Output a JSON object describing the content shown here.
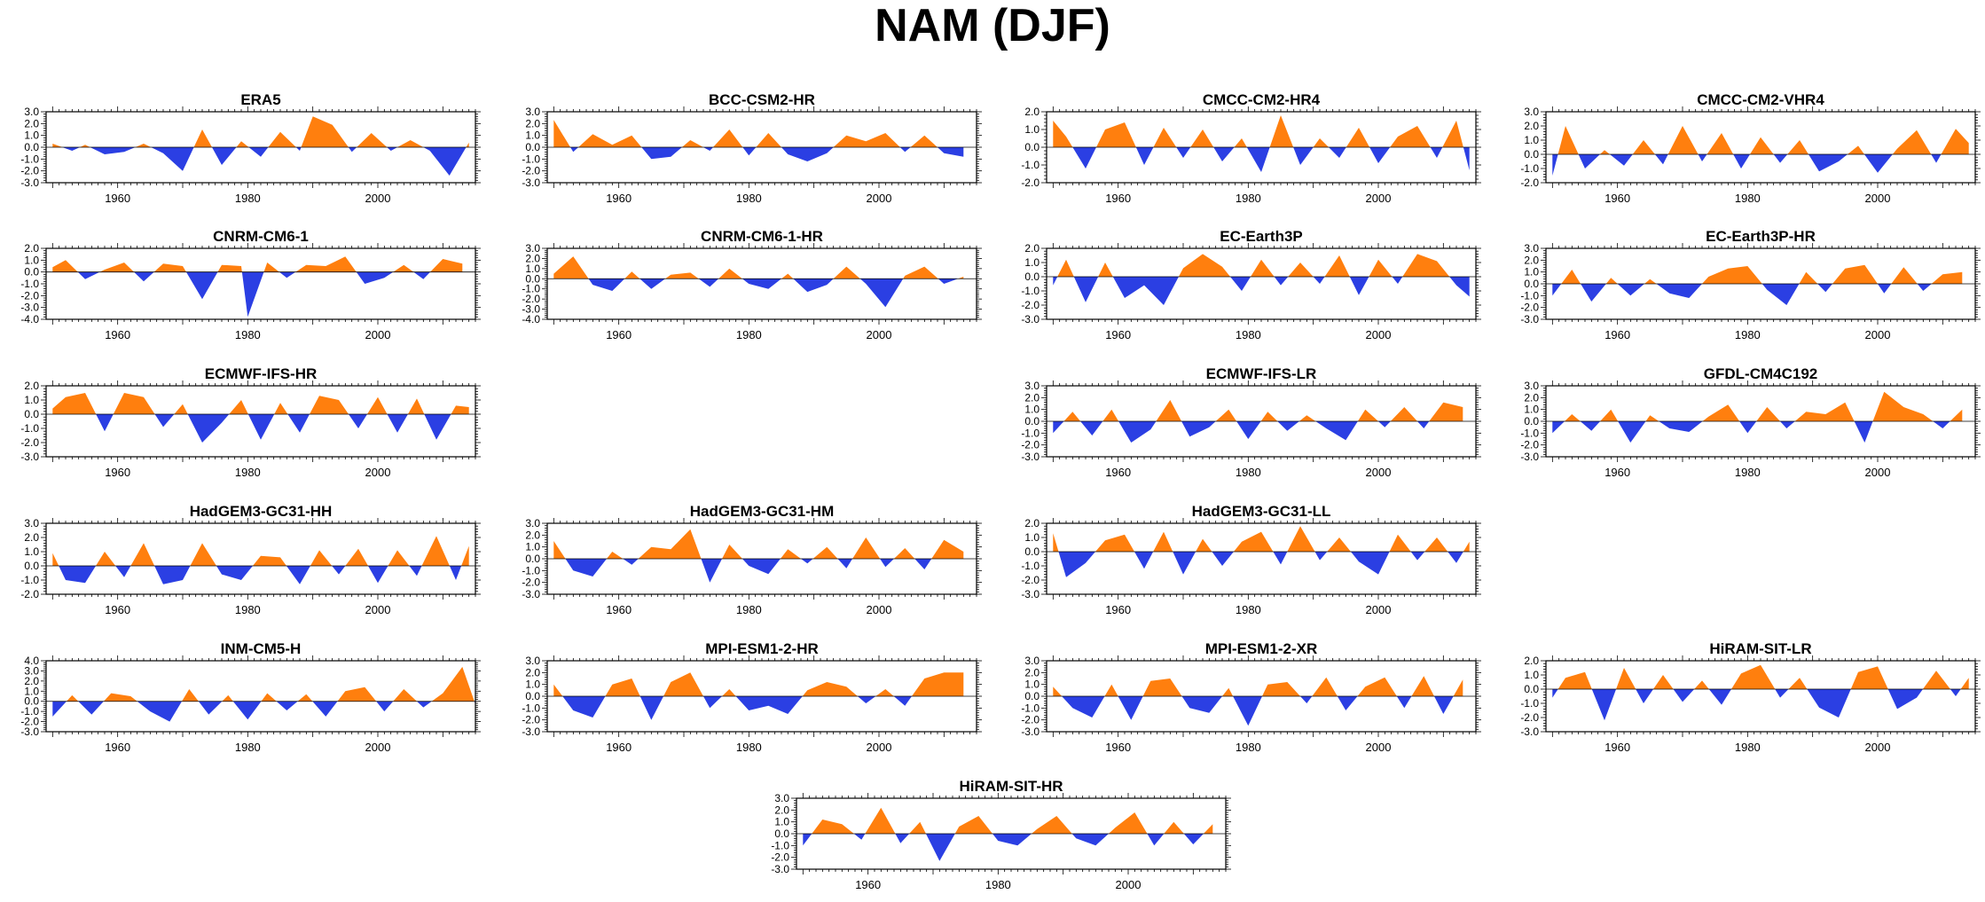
{
  "title": "NAM (DJF)",
  "colors": {
    "positive": "#FF7F0E",
    "negative": "#2B3FE3",
    "axis": "#000000"
  },
  "chart_data": {
    "type": "area",
    "x_ticks": [
      1960,
      1980,
      2000
    ],
    "xlim": [
      1949,
      2015
    ],
    "panels": [
      {
        "title": "ERA5",
        "ylim": [
          -3.0,
          3.0
        ],
        "yticks": [
          3.0,
          2.0,
          1.0,
          0.0,
          -1.0,
          -2.0,
          -3.0
        ],
        "x": [
          1950,
          1953,
          1955,
          1958,
          1961,
          1964,
          1967,
          1970,
          1973,
          1976,
          1979,
          1982,
          1985,
          1988,
          1990,
          1993,
          1996,
          1999,
          2002,
          2005,
          2008,
          2011,
          2014
        ],
        "values": [
          0.3,
          -0.3,
          0.2,
          -0.6,
          -0.4,
          0.3,
          -0.5,
          -2.0,
          1.5,
          -1.5,
          0.5,
          -0.8,
          1.3,
          -0.3,
          2.6,
          1.9,
          -0.4,
          1.2,
          -0.3,
          0.6,
          -0.3,
          -2.4,
          0.4
        ]
      },
      {
        "title": "BCC-CSM2-HR",
        "ylim": [
          -3.0,
          3.0
        ],
        "yticks": [
          3.0,
          2.0,
          1.0,
          0.0,
          -1.0,
          -2.0,
          -3.0
        ],
        "x": [
          1950,
          1953,
          1956,
          1959,
          1962,
          1965,
          1968,
          1971,
          1974,
          1977,
          1980,
          1983,
          1986,
          1989,
          1992,
          1995,
          1998,
          2001,
          2004,
          2007,
          2010,
          2013
        ],
        "values": [
          2.3,
          -0.4,
          1.1,
          0.2,
          1.0,
          -1.0,
          -0.8,
          0.6,
          -0.3,
          1.5,
          -0.7,
          1.2,
          -0.6,
          -1.2,
          -0.5,
          1.0,
          0.5,
          1.2,
          -0.4,
          1.0,
          -0.5,
          -0.8
        ]
      },
      {
        "title": "CMCC-CM2-HR4",
        "ylim": [
          -2.0,
          2.0
        ],
        "yticks": [
          2.0,
          1.0,
          0.0,
          -1.0,
          -2.0
        ],
        "x": [
          1950,
          1952,
          1955,
          1958,
          1961,
          1964,
          1967,
          1970,
          1973,
          1976,
          1979,
          1982,
          1985,
          1988,
          1991,
          1994,
          1997,
          2000,
          2003,
          2006,
          2009,
          2012,
          2014
        ],
        "values": [
          1.5,
          0.6,
          -1.2,
          1.0,
          1.4,
          -1.0,
          1.1,
          -0.6,
          1.0,
          -0.8,
          0.5,
          -1.4,
          1.8,
          -1.0,
          0.5,
          -0.6,
          1.1,
          -0.9,
          0.6,
          1.2,
          -0.6,
          1.5,
          -1.3
        ]
      },
      {
        "title": "CMCC-CM2-VHR4",
        "ylim": [
          -2.0,
          3.0
        ],
        "yticks": [
          3.0,
          2.0,
          1.0,
          0.0,
          -1.0,
          -2.0
        ],
        "x": [
          1950,
          1952,
          1955,
          1958,
          1961,
          1964,
          1967,
          1970,
          1973,
          1976,
          1979,
          1982,
          1985,
          1988,
          1991,
          1994,
          1997,
          2000,
          2003,
          2006,
          2009,
          2012,
          2014
        ],
        "values": [
          -1.5,
          2.0,
          -1.0,
          0.3,
          -0.8,
          1.0,
          -0.7,
          2.0,
          -0.5,
          1.5,
          -1.0,
          1.2,
          -0.6,
          1.0,
          -1.2,
          -0.5,
          0.6,
          -1.3,
          0.4,
          1.7,
          -0.6,
          1.8,
          0.8
        ]
      },
      {
        "title": "CNRM-CM6-1",
        "ylim": [
          -4.0,
          2.0
        ],
        "yticks": [
          2.0,
          1.0,
          0.0,
          -1.0,
          -2.0,
          -3.0,
          -4.0
        ],
        "x": [
          1950,
          1952,
          1955,
          1958,
          1961,
          1964,
          1967,
          1970,
          1973,
          1976,
          1979,
          1980,
          1983,
          1986,
          1989,
          1992,
          1995,
          1998,
          2001,
          2004,
          2007,
          2010,
          2013
        ],
        "values": [
          0.4,
          1.0,
          -0.6,
          0.2,
          0.8,
          -0.8,
          0.7,
          0.5,
          -2.3,
          0.6,
          0.5,
          -3.8,
          0.8,
          -0.5,
          0.6,
          0.5,
          1.3,
          -1.0,
          -0.5,
          0.6,
          -0.6,
          1.1,
          0.7
        ]
      },
      {
        "title": "CNRM-CM6-1-HR",
        "ylim": [
          -4.0,
          3.0
        ],
        "yticks": [
          3.0,
          2.0,
          1.0,
          0.0,
          -1.0,
          -2.0,
          -3.0,
          -4.0
        ],
        "x": [
          1950,
          1953,
          1956,
          1959,
          1962,
          1965,
          1968,
          1971,
          1974,
          1977,
          1980,
          1983,
          1986,
          1989,
          1992,
          1995,
          1998,
          2001,
          2004,
          2007,
          2010,
          2013
        ],
        "values": [
          0.5,
          2.2,
          -0.6,
          -1.2,
          0.7,
          -1.0,
          0.4,
          0.6,
          -0.8,
          1.0,
          -0.5,
          -1.0,
          0.5,
          -1.3,
          -0.6,
          1.2,
          -0.5,
          -2.8,
          0.3,
          1.2,
          -0.5,
          0.2
        ]
      },
      {
        "title": "EC-Earth3P",
        "ylim": [
          -3.0,
          2.0
        ],
        "yticks": [
          2.0,
          1.0,
          0.0,
          -1.0,
          -2.0,
          -3.0
        ],
        "x": [
          1950,
          1952,
          1955,
          1958,
          1961,
          1964,
          1967,
          1970,
          1973,
          1976,
          1979,
          1982,
          1985,
          1988,
          1991,
          1994,
          1997,
          2000,
          2003,
          2006,
          2009,
          2012,
          2014
        ],
        "values": [
          -0.6,
          1.2,
          -1.8,
          1.0,
          -1.5,
          -0.6,
          -2.0,
          0.6,
          1.6,
          0.7,
          -1.0,
          1.2,
          -0.6,
          1.0,
          -0.5,
          1.5,
          -1.3,
          1.2,
          -0.5,
          1.6,
          1.1,
          -0.6,
          -1.4
        ]
      },
      {
        "title": "EC-Earth3P-HR",
        "ylim": [
          -3.0,
          3.0
        ],
        "yticks": [
          3.0,
          2.0,
          1.0,
          0.0,
          -1.0,
          -2.0,
          -3.0
        ],
        "x": [
          1950,
          1953,
          1956,
          1959,
          1962,
          1965,
          1968,
          1971,
          1974,
          1977,
          1980,
          1983,
          1986,
          1989,
          1992,
          1995,
          1998,
          2001,
          2004,
          2007,
          2010,
          2013
        ],
        "values": [
          -1.0,
          1.2,
          -1.5,
          0.5,
          -1.0,
          0.4,
          -0.8,
          -1.2,
          0.6,
          1.3,
          1.5,
          -0.5,
          -1.8,
          1.0,
          -0.7,
          1.3,
          1.6,
          -0.8,
          1.4,
          -0.6,
          0.8,
          1.0
        ]
      },
      {
        "title": "ECMWF-IFS-HR",
        "ylim": [
          -3.0,
          2.0
        ],
        "yticks": [
          2.0,
          1.0,
          0.0,
          -1.0,
          -2.0,
          -3.0
        ],
        "x": [
          1950,
          1952,
          1955,
          1958,
          1961,
          1964,
          1967,
          1970,
          1973,
          1976,
          1979,
          1982,
          1985,
          1988,
          1991,
          1994,
          1997,
          2000,
          2003,
          2006,
          2009,
          2012,
          2014
        ],
        "values": [
          0.4,
          1.2,
          1.5,
          -1.2,
          1.5,
          1.2,
          -0.9,
          0.7,
          -2.0,
          -0.6,
          1.0,
          -1.8,
          0.8,
          -1.3,
          1.3,
          1.0,
          -1.0,
          1.2,
          -1.3,
          1.1,
          -1.8,
          0.6,
          0.5
        ]
      },
      {
        "title": "ECMWF-IFS-LR",
        "ylim": [
          -3.0,
          3.0
        ],
        "yticks": [
          3.0,
          2.0,
          1.0,
          0.0,
          -1.0,
          -2.0,
          -3.0
        ],
        "x": [
          1950,
          1953,
          1956,
          1959,
          1962,
          1965,
          1968,
          1971,
          1974,
          1977,
          1980,
          1983,
          1986,
          1989,
          1992,
          1995,
          1998,
          2001,
          2004,
          2007,
          2010,
          2013
        ],
        "values": [
          -1.0,
          0.8,
          -1.2,
          1.0,
          -1.8,
          -0.7,
          1.8,
          -1.3,
          -0.5,
          1.0,
          -1.5,
          0.8,
          -0.8,
          0.5,
          -0.6,
          -1.6,
          1.0,
          -0.5,
          1.2,
          -0.6,
          1.6,
          1.2
        ]
      },
      {
        "title": "GFDL-CM4C192",
        "ylim": [
          -3.0,
          3.0
        ],
        "yticks": [
          3.0,
          2.0,
          1.0,
          0.0,
          -1.0,
          -2.0,
          -3.0
        ],
        "x": [
          1950,
          1953,
          1956,
          1959,
          1962,
          1965,
          1968,
          1971,
          1974,
          1977,
          1980,
          1983,
          1986,
          1989,
          1992,
          1995,
          1998,
          2001,
          2004,
          2007,
          2010,
          2013
        ],
        "values": [
          -1.0,
          0.6,
          -0.8,
          1.0,
          -1.8,
          0.5,
          -0.6,
          -0.9,
          0.4,
          1.4,
          -1.0,
          1.2,
          -0.6,
          0.8,
          0.6,
          1.6,
          -1.8,
          2.5,
          1.2,
          0.6,
          -0.6,
          1.0
        ]
      },
      {
        "title": "HadGEM3-GC31-HH",
        "ylim": [
          -2.0,
          3.0
        ],
        "yticks": [
          3.0,
          2.0,
          1.0,
          0.0,
          -1.0,
          -2.0
        ],
        "x": [
          1950,
          1952,
          1955,
          1958,
          1961,
          1964,
          1967,
          1970,
          1973,
          1976,
          1979,
          1982,
          1985,
          1988,
          1991,
          1994,
          1997,
          2000,
          2003,
          2006,
          2009,
          2012,
          2014
        ],
        "values": [
          0.9,
          -1.0,
          -1.2,
          1.0,
          -0.8,
          1.6,
          -1.3,
          -1.0,
          1.6,
          -0.6,
          -1.0,
          0.7,
          0.6,
          -1.3,
          1.1,
          -0.6,
          1.2,
          -1.2,
          1.1,
          -0.7,
          2.1,
          -1.0,
          1.4
        ]
      },
      {
        "title": "HadGEM3-GC31-HM",
        "ylim": [
          -3.0,
          3.0
        ],
        "yticks": [
          3.0,
          2.0,
          1.0,
          0.0,
          -1.0,
          -2.0,
          -3.0
        ],
        "x": [
          1950,
          1953,
          1956,
          1959,
          1962,
          1965,
          1968,
          1971,
          1974,
          1977,
          1980,
          1983,
          1986,
          1989,
          1992,
          1995,
          1998,
          2001,
          2004,
          2007,
          2010,
          2013
        ],
        "values": [
          1.5,
          -1.0,
          -1.5,
          0.6,
          -0.5,
          1.0,
          0.8,
          2.5,
          -2.0,
          1.2,
          -0.6,
          -1.3,
          0.8,
          -0.4,
          1.0,
          -0.8,
          1.8,
          -0.7,
          0.9,
          -0.9,
          1.6,
          0.6
        ]
      },
      {
        "title": "HadGEM3-GC31-LL",
        "ylim": [
          -3.0,
          2.0
        ],
        "yticks": [
          2.0,
          1.0,
          0.0,
          -1.0,
          -2.0,
          -3.0
        ],
        "x": [
          1950,
          1952,
          1955,
          1958,
          1961,
          1964,
          1967,
          1970,
          1973,
          1976,
          1979,
          1982,
          1985,
          1988,
          1991,
          1994,
          1997,
          2000,
          2003,
          2006,
          2009,
          2012,
          2014
        ],
        "values": [
          1.3,
          -1.8,
          -0.8,
          0.8,
          1.2,
          -1.2,
          1.4,
          -1.6,
          0.9,
          -1.0,
          0.7,
          1.4,
          -0.9,
          1.8,
          -0.6,
          1.0,
          -0.7,
          -1.6,
          1.2,
          -0.6,
          1.0,
          -0.8,
          0.7
        ]
      },
      {
        "title": "INM-CM5-H",
        "ylim": [
          -3.0,
          4.0
        ],
        "yticks": [
          4.0,
          3.0,
          2.0,
          1.0,
          0.0,
          -1.0,
          -2.0,
          -3.0
        ],
        "x": [
          1950,
          1953,
          1956,
          1959,
          1962,
          1965,
          1968,
          1971,
          1974,
          1977,
          1980,
          1983,
          1986,
          1989,
          1992,
          1995,
          1998,
          2001,
          2004,
          2007,
          2010,
          2013,
          2015
        ],
        "values": [
          -1.5,
          0.6,
          -1.3,
          0.8,
          0.5,
          -1.0,
          -2.0,
          1.2,
          -1.3,
          0.6,
          -1.8,
          0.8,
          -0.9,
          0.7,
          -1.5,
          1.0,
          1.4,
          -1.0,
          1.2,
          -0.6,
          0.8,
          3.4,
          -0.3
        ]
      },
      {
        "title": "MPI-ESM1-2-HR",
        "ylim": [
          -3.0,
          3.0
        ],
        "yticks": [
          3.0,
          2.0,
          1.0,
          0.0,
          -1.0,
          -2.0,
          -3.0
        ],
        "x": [
          1950,
          1953,
          1956,
          1959,
          1962,
          1965,
          1968,
          1971,
          1974,
          1977,
          1980,
          1983,
          1986,
          1989,
          1992,
          1995,
          1998,
          2001,
          2004,
          2007,
          2010,
          2013
        ],
        "values": [
          1.0,
          -1.2,
          -1.8,
          1.0,
          1.5,
          -2.0,
          1.2,
          2.0,
          -1.0,
          0.6,
          -1.2,
          -0.8,
          -1.5,
          0.5,
          1.2,
          0.8,
          -0.6,
          0.6,
          -0.8,
          1.5,
          2.0,
          2.0
        ]
      },
      {
        "title": "MPI-ESM1-2-XR",
        "ylim": [
          -3.0,
          3.0
        ],
        "yticks": [
          3.0,
          2.0,
          1.0,
          0.0,
          -1.0,
          -2.0,
          -3.0
        ],
        "x": [
          1950,
          1953,
          1956,
          1959,
          1962,
          1965,
          1968,
          1971,
          1974,
          1977,
          1980,
          1983,
          1986,
          1989,
          1992,
          1995,
          1998,
          2001,
          2004,
          2007,
          2010,
          2013
        ],
        "values": [
          0.8,
          -1.0,
          -1.8,
          1.0,
          -2.0,
          1.3,
          1.5,
          -1.0,
          -1.4,
          0.7,
          -2.5,
          1.0,
          1.2,
          -0.6,
          1.6,
          -1.2,
          0.8,
          1.6,
          -1.0,
          1.7,
          -1.5,
          1.4
        ]
      },
      {
        "title": "HiRAM-SIT-LR",
        "ylim": [
          -3.0,
          2.0
        ],
        "yticks": [
          2.0,
          1.0,
          0.0,
          -1.0,
          -2.0,
          -3.0
        ],
        "x": [
          1950,
          1952,
          1955,
          1958,
          1961,
          1964,
          1967,
          1970,
          1973,
          1976,
          1979,
          1982,
          1985,
          1988,
          1991,
          1994,
          1997,
          2000,
          2003,
          2006,
          2009,
          2012,
          2014
        ],
        "values": [
          -0.6,
          0.8,
          1.2,
          -2.2,
          1.5,
          -1.0,
          1.0,
          -0.9,
          0.6,
          -1.1,
          1.1,
          1.7,
          -0.6,
          0.8,
          -1.3,
          -2.0,
          1.2,
          1.6,
          -1.4,
          -0.6,
          1.3,
          -0.5,
          0.8
        ]
      },
      {
        "title": "HiRAM-SIT-HR",
        "ylim": [
          -3.0,
          3.0
        ],
        "yticks": [
          3.0,
          2.0,
          1.0,
          0.0,
          -1.0,
          -2.0,
          -3.0
        ],
        "x": [
          1950,
          1953,
          1956,
          1959,
          1962,
          1965,
          1968,
          1971,
          1974,
          1977,
          1980,
          1983,
          1986,
          1989,
          1992,
          1995,
          1998,
          2001,
          2004,
          2007,
          2010,
          2013
        ],
        "values": [
          -1.0,
          1.2,
          0.8,
          -0.5,
          2.2,
          -0.8,
          1.0,
          -2.3,
          0.6,
          1.5,
          -0.6,
          -1.0,
          0.4,
          1.5,
          -0.4,
          -1.0,
          0.5,
          1.8,
          -1.0,
          1.0,
          -0.9,
          0.8
        ]
      }
    ]
  }
}
